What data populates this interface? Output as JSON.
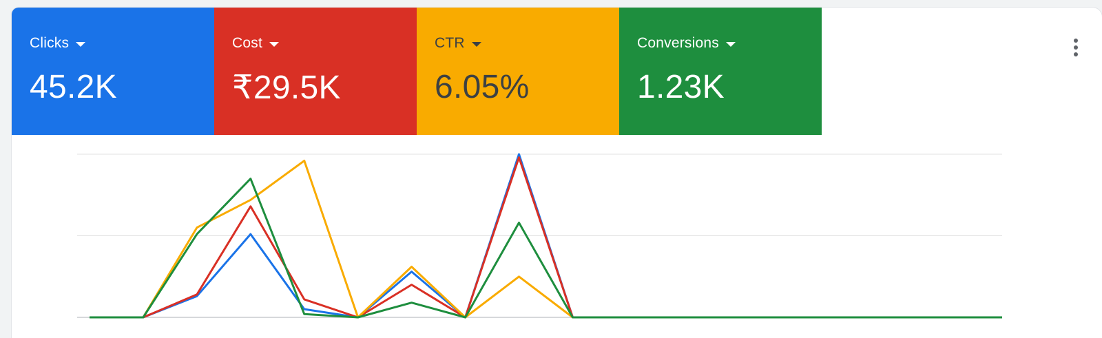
{
  "metrics": [
    {
      "label": "Clicks",
      "value": "45.2K",
      "bg": "#1a73e8",
      "fg": "#ffffff"
    },
    {
      "label": "Cost",
      "value": "₹29.5K",
      "bg": "#d93025",
      "fg": "#ffffff"
    },
    {
      "label": "CTR",
      "value": "6.05%",
      "bg": "#f9ab00",
      "fg": "#3c4043"
    },
    {
      "label": "Conversions",
      "value": "1.23K",
      "bg": "#1e8e3e",
      "fg": "#ffffff"
    }
  ],
  "menu_icon": "more-vert-icon",
  "chart_data": {
    "type": "line",
    "x": [
      0,
      1,
      2,
      3,
      4,
      5,
      6,
      7,
      8,
      9,
      10,
      11,
      12,
      13,
      14,
      15,
      16,
      17
    ],
    "grid": true,
    "ylim": [
      0,
      1
    ],
    "series": [
      {
        "color": "#1a73e8",
        "values": [
          0,
          0,
          0.13,
          0.51,
          0.05,
          0,
          0.28,
          0,
          1.0,
          0,
          0,
          0,
          0,
          0,
          0,
          0,
          0,
          0
        ]
      },
      {
        "color": "#d93025",
        "values": [
          0,
          0,
          0.14,
          0.68,
          0.11,
          0,
          0.2,
          0,
          0.98,
          0,
          0,
          0,
          0,
          0,
          0,
          0,
          0,
          0
        ]
      },
      {
        "color": "#f9ab00",
        "values": [
          0,
          0,
          0.55,
          0.72,
          0.96,
          0,
          0.31,
          0,
          0.25,
          0,
          0,
          0,
          0,
          0,
          0,
          0,
          0,
          0
        ]
      },
      {
        "color": "#1e8e3e",
        "values": [
          0,
          0,
          0.51,
          0.85,
          0.02,
          0,
          0.09,
          0,
          0.58,
          0,
          0,
          0,
          0,
          0,
          0,
          0,
          0,
          0
        ]
      }
    ]
  }
}
